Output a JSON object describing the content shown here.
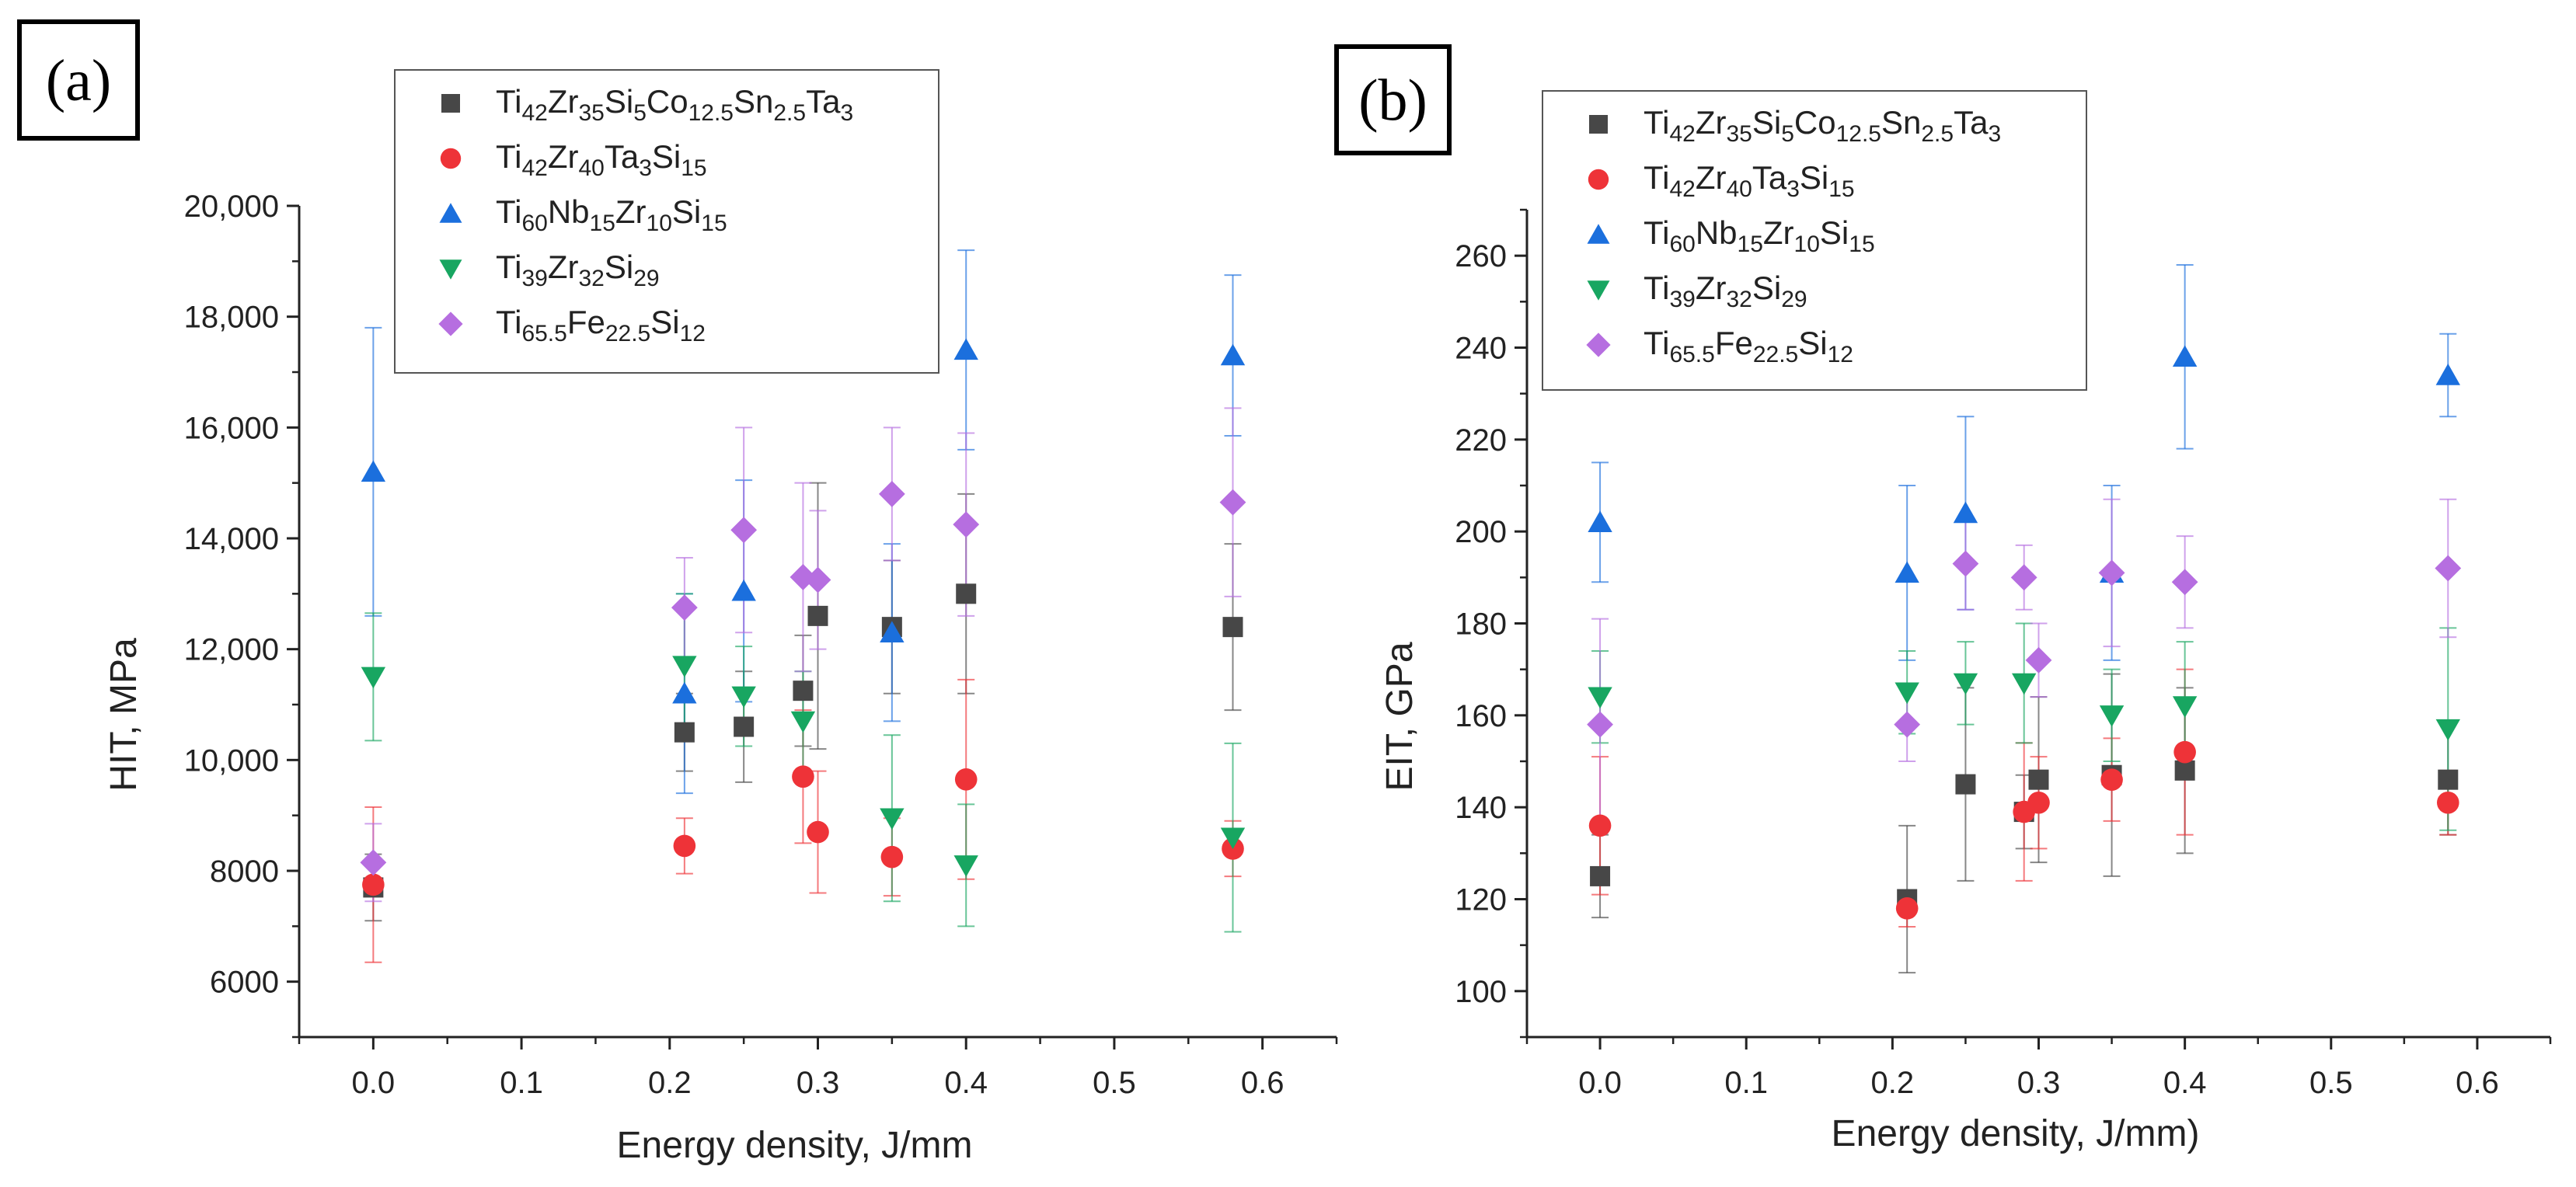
{
  "colors": {
    "s1": "#474747",
    "s2": "#ee3338",
    "s3": "#1b6fdd",
    "s4": "#18a661",
    "s5": "#b66ee0"
  },
  "legend": [
    {
      "key": "s1",
      "marker": "square",
      "label": "Ti42Zr35Si5Co12.5Sn2.5Ta3",
      "parts": [
        [
          "Ti",
          ""
        ],
        [
          "42",
          "s"
        ],
        [
          "Zr",
          ""
        ],
        [
          "35",
          "s"
        ],
        [
          "Si",
          ""
        ],
        [
          "5",
          "s"
        ],
        [
          "Co",
          ""
        ],
        [
          "12.5",
          "s"
        ],
        [
          "Sn",
          ""
        ],
        [
          "2.5",
          "s"
        ],
        [
          "Ta",
          ""
        ],
        [
          "3",
          "s"
        ]
      ]
    },
    {
      "key": "s2",
      "marker": "circle",
      "label": "Ti42Zr40Ta3Si15",
      "parts": [
        [
          "Ti",
          ""
        ],
        [
          "42",
          "s"
        ],
        [
          "Zr",
          ""
        ],
        [
          "40",
          "s"
        ],
        [
          "Ta",
          ""
        ],
        [
          "3",
          "s"
        ],
        [
          "Si",
          ""
        ],
        [
          "15",
          "s"
        ]
      ]
    },
    {
      "key": "s3",
      "marker": "triangle-up",
      "label": "Ti60Nb15Zr10Si15",
      "parts": [
        [
          "Ti",
          ""
        ],
        [
          "60",
          "s"
        ],
        [
          "Nb",
          ""
        ],
        [
          "15",
          "s"
        ],
        [
          "Zr",
          ""
        ],
        [
          "10",
          "s"
        ],
        [
          "Si",
          ""
        ],
        [
          "15",
          "s"
        ]
      ]
    },
    {
      "key": "s4",
      "marker": "triangle-down",
      "label": "Ti39Zr32Si29",
      "parts": [
        [
          "Ti",
          ""
        ],
        [
          "39",
          "s"
        ],
        [
          "Zr",
          ""
        ],
        [
          "32",
          "s"
        ],
        [
          "Si",
          ""
        ],
        [
          "29",
          "s"
        ]
      ]
    },
    {
      "key": "s5",
      "marker": "diamond",
      "label": "Ti65.5Fe22.5Si12",
      "parts": [
        [
          "Ti",
          ""
        ],
        [
          "65.5",
          "s"
        ],
        [
          "Fe",
          ""
        ],
        [
          "22.5",
          "s"
        ],
        [
          "Si",
          ""
        ],
        [
          "12",
          "s"
        ]
      ]
    }
  ],
  "chart_data": [
    {
      "type": "scatter",
      "panel_label": "(a)",
      "xlabel": "Energy density, J/mm",
      "ylabel": "HIT, MPa",
      "xlim": [
        -0.05,
        0.65
      ],
      "ylim": [
        5000,
        20000
      ],
      "xticks": [
        0.0,
        0.1,
        0.2,
        0.3,
        0.4,
        0.5,
        0.6
      ],
      "xtick_labels": [
        "0.0",
        "0.1",
        "0.2",
        "0.3",
        "0.4",
        "0.5",
        "0.6"
      ],
      "yticks": [
        6000,
        8000,
        10000,
        12000,
        14000,
        16000,
        18000,
        20000
      ],
      "ytick_labels": [
        "6000",
        "8000",
        "10,000",
        "12,000",
        "14,000",
        "16,000",
        "18,000",
        "20,000"
      ],
      "legend_position": "top-center",
      "series": [
        {
          "key": "s1",
          "x": [
            0.0,
            0.21,
            0.25,
            0.29,
            0.3,
            0.35,
            0.4,
            0.58
          ],
          "y": [
            7700,
            10500,
            10600,
            11250,
            12600,
            12400,
            13000,
            12400
          ],
          "err": [
            600,
            700,
            1000,
            1000,
            2400,
            1200,
            1800,
            1500
          ]
        },
        {
          "key": "s2",
          "x": [
            0.0,
            0.21,
            0.29,
            0.3,
            0.35,
            0.4,
            0.58
          ],
          "y": [
            7750,
            8450,
            9700,
            8700,
            8250,
            9650,
            8400
          ],
          "err": [
            1400,
            500,
            1200,
            1100,
            700,
            1800,
            500
          ]
        },
        {
          "key": "s3",
          "x": [
            0.0,
            0.21,
            0.25,
            0.35,
            0.4,
            0.58
          ],
          "y": [
            15200,
            11200,
            13050,
            12300,
            17400,
            17300
          ],
          "err": [
            2600,
            1800,
            2000,
            1600,
            1800,
            1450
          ]
        },
        {
          "key": "s4",
          "x": [
            0.0,
            0.21,
            0.25,
            0.29,
            0.35,
            0.4,
            0.58
          ],
          "y": [
            11500,
            11700,
            11150,
            10700,
            8950,
            8100,
            8600
          ],
          "err": [
            1150,
            1300,
            900,
            900,
            1500,
            1100,
            1700
          ]
        },
        {
          "key": "s5",
          "x": [
            0.0,
            0.21,
            0.25,
            0.29,
            0.3,
            0.35,
            0.4,
            0.58
          ],
          "y": [
            8150,
            12750,
            14150,
            13300,
            13250,
            14800,
            14250,
            14650
          ],
          "err": [
            700,
            900,
            1850,
            1700,
            1250,
            1200,
            1650,
            1700
          ]
        }
      ]
    },
    {
      "type": "scatter",
      "panel_label": "(b)",
      "xlabel": "Energy density, J/mm)",
      "ylabel": "EIT, GPa",
      "xlim": [
        -0.05,
        0.65
      ],
      "ylim": [
        90,
        270
      ],
      "xticks": [
        0.0,
        0.1,
        0.2,
        0.3,
        0.4,
        0.5,
        0.6
      ],
      "xtick_labels": [
        "0.0",
        "0.1",
        "0.2",
        "0.3",
        "0.4",
        "0.5",
        "0.6"
      ],
      "yticks": [
        100,
        120,
        140,
        160,
        180,
        200,
        220,
        240,
        260
      ],
      "ytick_labels": [
        "100",
        "120",
        "140",
        "160",
        "180",
        "200",
        "220",
        "240",
        "260"
      ],
      "legend_position": "top-left",
      "series": [
        {
          "key": "s1",
          "x": [
            0.0,
            0.21,
            0.25,
            0.29,
            0.3,
            0.35,
            0.4,
            0.58
          ],
          "y": [
            125,
            120,
            145,
            139,
            146,
            147,
            148,
            146
          ],
          "err": [
            9,
            16,
            21,
            8,
            18,
            22,
            18,
            12
          ]
        },
        {
          "key": "s2",
          "x": [
            0.0,
            0.21,
            0.29,
            0.3,
            0.35,
            0.4,
            0.58
          ],
          "y": [
            136,
            118,
            139,
            141,
            146,
            152,
            141
          ],
          "err": [
            15,
            4,
            15,
            10,
            9,
            18,
            7
          ]
        },
        {
          "key": "s3",
          "x": [
            0.0,
            0.21,
            0.25,
            0.35,
            0.4,
            0.58
          ],
          "y": [
            202,
            191,
            204,
            191,
            238,
            234
          ],
          "err": [
            13,
            19,
            21,
            19,
            20,
            9
          ]
        },
        {
          "key": "s4",
          "x": [
            0.0,
            0.21,
            0.25,
            0.29,
            0.35,
            0.4,
            0.58
          ],
          "y": [
            164,
            165,
            167,
            167,
            160,
            162,
            157
          ],
          "err": [
            10,
            9,
            9,
            13,
            10,
            14,
            22
          ]
        },
        {
          "key": "s5",
          "x": [
            0.0,
            0.21,
            0.25,
            0.29,
            0.3,
            0.35,
            0.4,
            0.58
          ],
          "y": [
            158,
            158,
            193,
            190,
            172,
            191,
            189,
            192
          ],
          "err": [
            23,
            8,
            10,
            7,
            8,
            16,
            10,
            15
          ]
        }
      ]
    }
  ]
}
